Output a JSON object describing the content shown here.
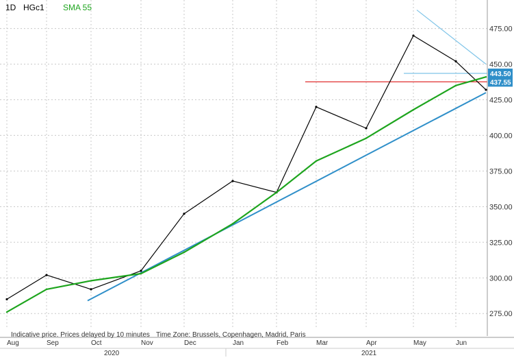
{
  "header": {
    "interval": "1D",
    "symbol": "HGc1",
    "indicator": "SMA 55"
  },
  "footer": {
    "delay_note": "Indicative price. Prices delayed by 10 minutes",
    "timezone_note": "Time Zone: Brussels, Copenhagen, Madrid, Paris"
  },
  "colors": {
    "price": "#000000",
    "sma": "#1ea51e",
    "trend": "#2f8fc9",
    "resistance": "#7fc4e8",
    "support_line": "#e03030",
    "grid": "#c8c8c8"
  },
  "chart_data": {
    "type": "line",
    "title": "",
    "xlabel": "",
    "ylabel": "",
    "ylim": [
      265,
      495
    ],
    "grid": true,
    "y_ticks": [
      "275.00",
      "300.00",
      "325.00",
      "350.00",
      "375.00",
      "400.00",
      "425.00",
      "450.00",
      "475.00"
    ],
    "x_ticks": [
      "Aug",
      "Sep",
      "Oct",
      "Nov",
      "Dec",
      "Jan",
      "Feb",
      "Mar",
      "Apr",
      "May",
      "Jun"
    ],
    "year_labels": [
      "2020",
      "2021"
    ],
    "price_labels": [
      "443.50",
      "437.55"
    ],
    "series": [
      {
        "name": "HGc1",
        "x": [
          "Aug",
          "Sep",
          "Oct",
          "Nov",
          "Dec",
          "Jan",
          "Feb",
          "Mar",
          "Apr",
          "May",
          "Jun",
          "Jun end"
        ],
        "values": [
          285,
          302,
          292,
          305,
          345,
          368,
          360,
          420,
          405,
          470,
          452,
          432
        ]
      },
      {
        "name": "SMA 55",
        "x": [
          "Aug",
          "Sep",
          "Oct",
          "Nov",
          "Dec",
          "Jan",
          "Feb",
          "Mar",
          "Apr",
          "May",
          "Jun",
          "Jun end"
        ],
        "values": [
          276,
          292,
          298,
          303,
          318,
          338,
          360,
          382,
          398,
          418,
          435,
          441
        ]
      }
    ],
    "annotations": [
      {
        "type": "trendline",
        "from": [
          "Oct",
          284
        ],
        "to": [
          "Jun end",
          430
        ]
      },
      {
        "type": "resistance",
        "from": [
          "May",
          488
        ],
        "to": [
          "Jun end",
          450
        ]
      },
      {
        "type": "level",
        "value": 443.5
      },
      {
        "type": "level",
        "value": 437.55
      }
    ]
  }
}
